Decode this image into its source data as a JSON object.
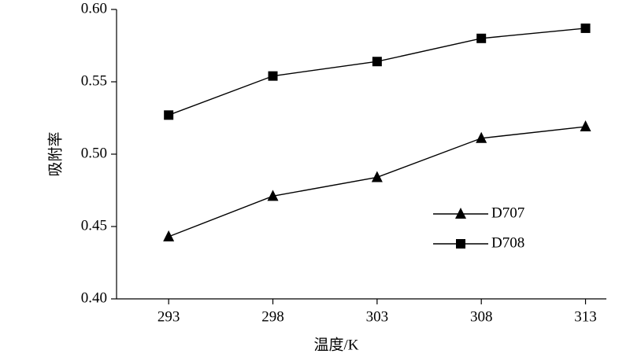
{
  "chart_data": {
    "type": "line",
    "x_label": "温度/K",
    "y_label": "吸附率",
    "x": [
      293,
      298,
      303,
      308,
      313
    ],
    "series": [
      {
        "name": "D707",
        "color": "#000000",
        "marker": "triangle",
        "values": [
          0.443,
          0.471,
          0.484,
          0.511,
          0.519
        ]
      },
      {
        "name": "D708",
        "color": "#000000",
        "marker": "square",
        "values": [
          0.527,
          0.554,
          0.564,
          0.58,
          0.587
        ]
      }
    ],
    "xlim": [
      290.5,
      314
    ],
    "xticks": [
      293,
      298,
      303,
      308,
      313
    ],
    "ylim": [
      0.4,
      0.6
    ],
    "yticks": [
      {
        "value": 0.4,
        "label": "0.40"
      },
      {
        "value": 0.45,
        "label": "0.45"
      },
      {
        "value": 0.5,
        "label": "0.50"
      },
      {
        "value": 0.55,
        "label": "0.55"
      },
      {
        "value": 0.6,
        "label": "0.60"
      }
    ],
    "grid": false,
    "legend": "lower right"
  }
}
